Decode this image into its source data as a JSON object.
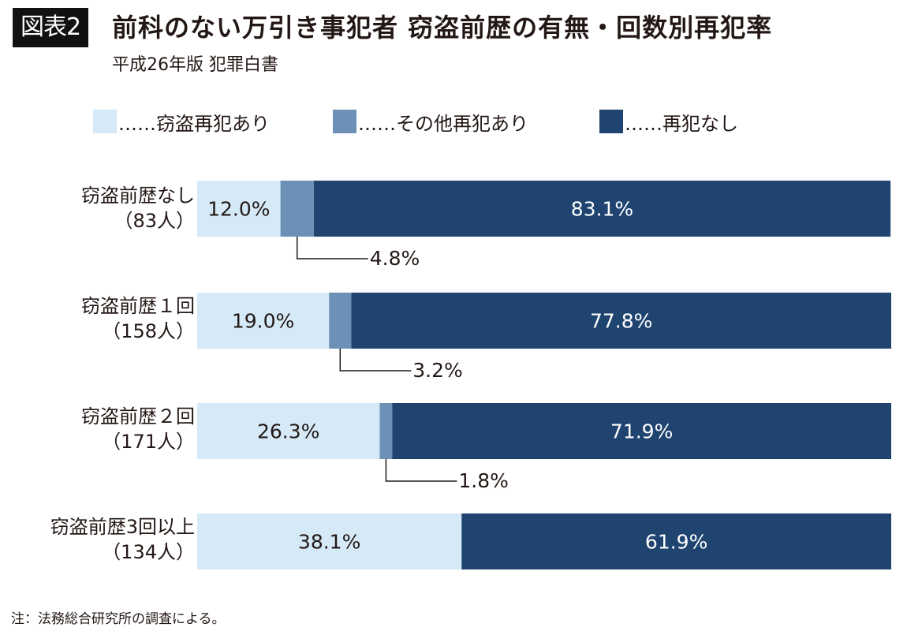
{
  "header": {
    "badge": "図表2",
    "title": "前科のない万引き事犯者 窃盗前歴の有無・回数別再犯率",
    "subtitle": "平成26年版 犯罪白書"
  },
  "legend": [
    {
      "label": "……窃盗再犯あり",
      "color": "#d5e9f6"
    },
    {
      "label": "……その他再犯あり",
      "color": "#6d90b7"
    },
    {
      "label": "……再犯なし",
      "color": "#1f4470"
    }
  ],
  "rows": [
    {
      "label_line1": "窃盗前歴なし",
      "label_line2": "（83人）"
    },
    {
      "label_line1": "窃盗前歴１回",
      "label_line2": "（158人）"
    },
    {
      "label_line1": "窃盗前歴２回",
      "label_line2": "（171人）"
    },
    {
      "label_line1": "窃盗前歴3回以上",
      "label_line2": "（134人）"
    }
  ],
  "chart_data": {
    "type": "bar",
    "orientation": "horizontal",
    "stacked": true,
    "normalized_percent": true,
    "categories": [
      "窃盗前歴なし（83人）",
      "窃盗前歴１回（158人）",
      "窃盗前歴２回（171人）",
      "窃盗前歴3回以上（134人）"
    ],
    "series": [
      {
        "name": "窃盗再犯あり",
        "values": [
          12.0,
          19.0,
          26.3,
          38.1
        ],
        "labels": [
          "12.0%",
          "19.0%",
          "26.3%",
          "38.1%"
        ],
        "color": "#d5e9f6"
      },
      {
        "name": "その他再犯あり",
        "values": [
          4.8,
          3.2,
          1.8,
          0
        ],
        "labels": [
          "4.8%",
          "3.2%",
          "1.8%",
          ""
        ],
        "color": "#6d90b7"
      },
      {
        "name": "再犯なし",
        "values": [
          83.1,
          77.8,
          71.9,
          61.9
        ],
        "labels": [
          "83.1%",
          "77.8%",
          "71.9%",
          "61.9%"
        ],
        "color": "#1f4470"
      }
    ],
    "legend_position": "top",
    "grid": false
  },
  "note": "注：法務総合研究所の調査による。"
}
